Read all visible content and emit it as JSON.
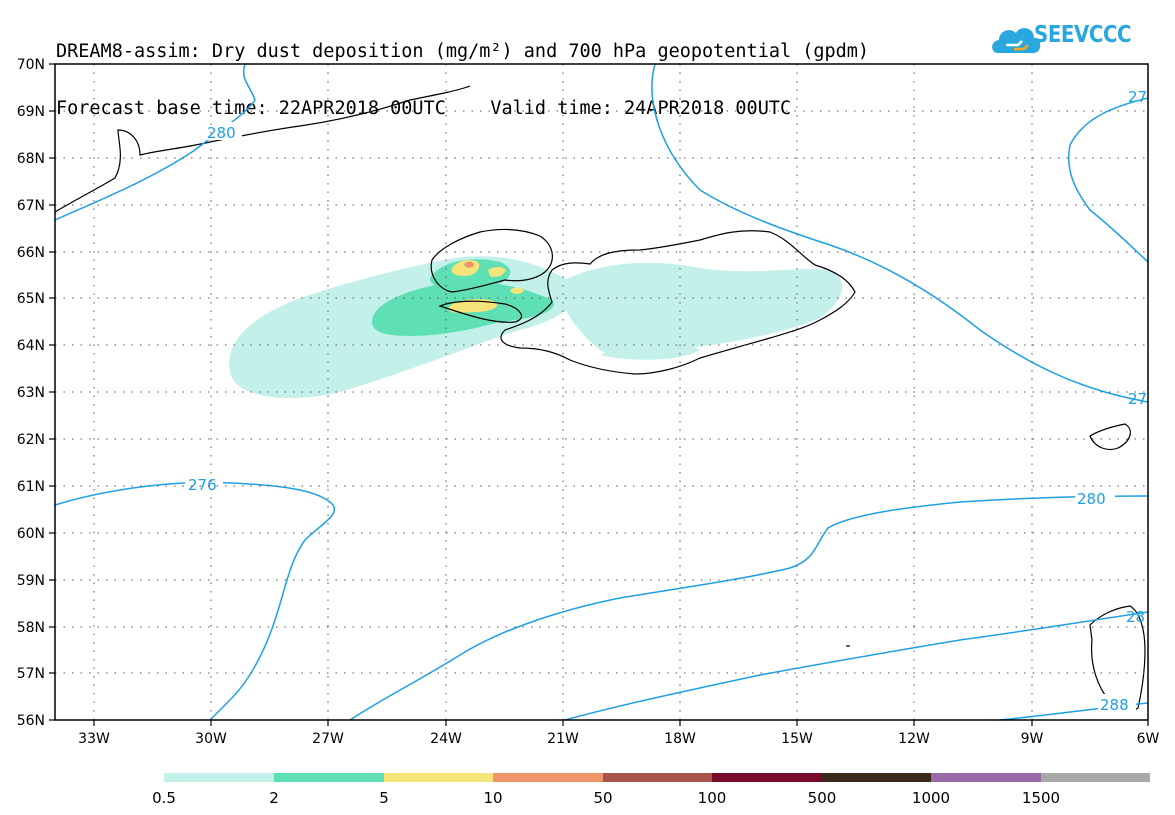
{
  "header": {
    "title_line1": "DREAM8-assim: Dry dust deposition (mg/m²) and 700 hPa geopotential (gpdm)",
    "title_line2": "Forecast base time: 22APR2018 00UTC    Valid time: 24APR2018 00UTC"
  },
  "logo": {
    "text": "SEEVCCC",
    "icon": "cloud-icon",
    "color": "#29a8df"
  },
  "map": {
    "lon_labels": [
      "33W",
      "30W",
      "27W",
      "24W",
      "21W",
      "18W",
      "15W",
      "12W",
      "9W",
      "6W"
    ],
    "lat_labels": [
      "70N",
      "69N",
      "68N",
      "67N",
      "66N",
      "65N",
      "64N",
      "63N",
      "62N",
      "61N",
      "60N",
      "59N",
      "58N",
      "57N",
      "56N"
    ],
    "lon_range": [
      -34.0,
      -6.0
    ],
    "lat_range": [
      56,
      70
    ],
    "grid": true,
    "contour_color": "#1ea0e6",
    "contour_labels": [
      "280",
      "276",
      "280",
      "27",
      "27",
      "288",
      "28"
    ]
  },
  "legend": {
    "labels": [
      "0.5",
      "2",
      "5",
      "10",
      "50",
      "100",
      "500",
      "1000",
      "1500"
    ],
    "colors": [
      "#c4f0ea",
      "#5ee0b4",
      "#f5e47a",
      "#f0956a",
      "#a8544a",
      "#7a0a2c",
      "#3a2a1a",
      "#9a6aa8",
      "#a8a8a8"
    ]
  }
}
